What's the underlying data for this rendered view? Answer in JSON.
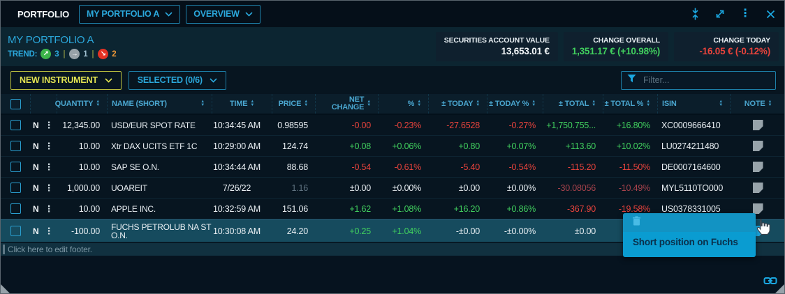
{
  "colors": {
    "accent_cyan": "#2ba8dc",
    "button_yellow": "#e3e352",
    "positive_green": "#41d05e",
    "negative_red": "#e8433c",
    "muted_red": "#a8434c",
    "stale_gray": "#5f7280",
    "row_highlight": "#164b5e",
    "tooltip_blue": "#0a9cd1"
  },
  "titlebar": {
    "app_label": "PORTFOLIO",
    "portfolio_dropdown": "MY PORTFOLIO A",
    "view_dropdown": "OVERVIEW"
  },
  "header": {
    "portfolio_name": "MY PORTFOLIO A",
    "trend_label": "TREND:",
    "trend_up_count": "3",
    "trend_flat_count": "1",
    "trend_down_count": "2",
    "stats": [
      {
        "label": "SECURITIES ACCOUNT VALUE",
        "value": "13,653.01 €",
        "tone": "neut"
      },
      {
        "label": "CHANGE OVERALL",
        "value": "1,351.17 € (+10.98%)",
        "tone": "pos"
      },
      {
        "label": "CHANGE TODAY",
        "value": "-16.05 € (-0.12%)",
        "tone": "neg"
      }
    ]
  },
  "toolbar": {
    "new_instrument_label": "NEW INSTRUMENT",
    "selected_label": "SELECTED (0/6)",
    "filter_placeholder": "Filter..."
  },
  "table": {
    "columns": [
      "QUANTITY",
      "NAME (SHORT)",
      "TIME",
      "PRICE",
      "NET CHANGE",
      "%",
      "± TODAY",
      "± TODAY %",
      "± TOTAL",
      "± TOTAL %",
      "ISIN",
      "NOTE"
    ],
    "rows": [
      {
        "flag": "N",
        "quantity": "12,345.00",
        "name": "USD/EUR SPOT RATE",
        "time": "10:34:45 AM",
        "price": "0.98595",
        "net_change": "-0.00",
        "pct": "-0.23%",
        "today": "-27.6528",
        "today_pct": "-0.27%",
        "total": "+1,750.755...",
        "total_pct": "+16.80%",
        "isin": "XC0009666410",
        "note": true,
        "tones": {
          "net_change": "neg",
          "pct": "neg",
          "today": "neg",
          "today_pct": "neg",
          "total": "pos",
          "total_pct": "pos"
        }
      },
      {
        "flag": "N",
        "quantity": "10.00",
        "name": "Xtr DAX UCITS ETF 1C",
        "time": "10:29:00 AM",
        "price": "124.74",
        "net_change": "+0.08",
        "pct": "+0.06%",
        "today": "+0.80",
        "today_pct": "+0.07%",
        "total": "+113.60",
        "total_pct": "+10.02%",
        "isin": "LU0274211480",
        "note": true,
        "tones": {
          "net_change": "pos",
          "pct": "pos",
          "today": "pos",
          "today_pct": "pos",
          "total": "pos",
          "total_pct": "pos"
        }
      },
      {
        "flag": "N",
        "quantity": "10.00",
        "name": "SAP SE O.N.",
        "time": "10:34:44 AM",
        "price": "88.68",
        "net_change": "-0.54",
        "pct": "-0.61%",
        "today": "-5.40",
        "today_pct": "-0.54%",
        "total": "-115.20",
        "total_pct": "-11.50%",
        "isin": "DE0007164600",
        "note": true,
        "tones": {
          "net_change": "neg",
          "pct": "neg",
          "today": "neg",
          "today_pct": "neg",
          "total": "neg",
          "total_pct": "neg"
        }
      },
      {
        "flag": "N",
        "quantity": "1,000.00",
        "name": "UOAREIT",
        "time": "7/26/22",
        "price": "1.16",
        "net_change": "±0.00",
        "pct": "±0.00%",
        "today": "±0.00",
        "today_pct": "±0.00%",
        "total": "-30.08056",
        "total_pct": "-10.49%",
        "isin": "MYL5110TO000",
        "note": true,
        "tones": {
          "price": "stale",
          "total": "mneg",
          "total_pct": "mneg"
        }
      },
      {
        "flag": "N",
        "quantity": "10.00",
        "name": "APPLE INC.",
        "time": "10:32:59 AM",
        "price": "151.06",
        "net_change": "+1.62",
        "pct": "+1.08%",
        "today": "+16.20",
        "today_pct": "+0.86%",
        "total": "-367.90",
        "total_pct": "-19.58%",
        "isin": "US0378331005",
        "note": true,
        "tones": {
          "net_change": "pos",
          "pct": "pos",
          "today": "pos",
          "today_pct": "pos",
          "total": "neg",
          "total_pct": "neg"
        }
      },
      {
        "flag": "N",
        "quantity": "-100.00",
        "name": "FUCHS PETROLUB NA ST O.N.",
        "time": "10:30:08 AM",
        "price": "24.20",
        "net_change": "+0.25",
        "pct": "+1.04%",
        "today": "-±0.00",
        "today_pct": "-±0.00%",
        "total": "±0.00",
        "total_pct": "",
        "isin": "",
        "note": true,
        "highlighted": true,
        "note_active": true,
        "tones": {
          "net_change": "pos",
          "pct": "pos"
        }
      }
    ]
  },
  "tooltip": {
    "text": "Short position on Fuchs"
  },
  "footer": {
    "edit_hint": "Click here to edit footer."
  }
}
